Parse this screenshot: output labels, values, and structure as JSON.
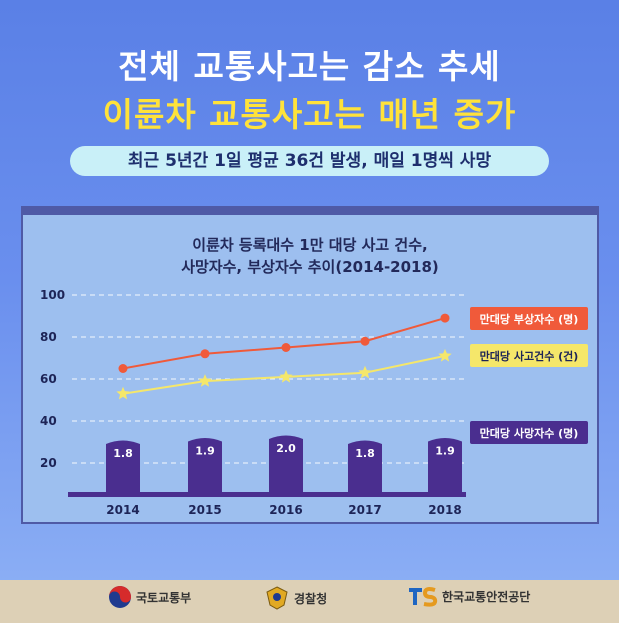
{
  "headline": {
    "line1": "전체 교통사고는 감소 추세",
    "line2": "이륜차 교통사고는 매년 증가",
    "subtitle": "최근 5년간 1일 평균 36건 발생, 매일 1명씩 사망"
  },
  "chart_data": {
    "type": "bar",
    "title_line1": "이륜차 등록대수 1만 대당 사고 건수,",
    "title_line2": "사망자수, 부상자수 추이(2014-2018)",
    "categories": [
      "2014",
      "2015",
      "2016",
      "2017",
      "2018"
    ],
    "y_ticks": [
      "20",
      "40",
      "60",
      "80",
      "100"
    ],
    "ylim": [
      0,
      100
    ],
    "grid": true,
    "series": [
      {
        "name": "만대당 사망자수 (명)",
        "type": "bar",
        "values": [
          1.8,
          1.9,
          2.0,
          1.8,
          1.9
        ],
        "value_labels": [
          "1.8",
          "1.9",
          "2.0",
          "1.8",
          "1.9"
        ],
        "color": "#4a2e8f"
      },
      {
        "name": "만대당 부상자수 (명)",
        "type": "line",
        "values": [
          65,
          72,
          75,
          78,
          89
        ],
        "color": "#f05a3a"
      },
      {
        "name": "만대당 사고건수 (건)",
        "type": "line",
        "values": [
          53,
          59,
          61,
          63,
          71
        ],
        "color": "#f5e76a"
      }
    ]
  },
  "footer": {
    "logo1": "국토교통부",
    "logo2": "경찰청",
    "logo3": "한국교통안전공단"
  }
}
